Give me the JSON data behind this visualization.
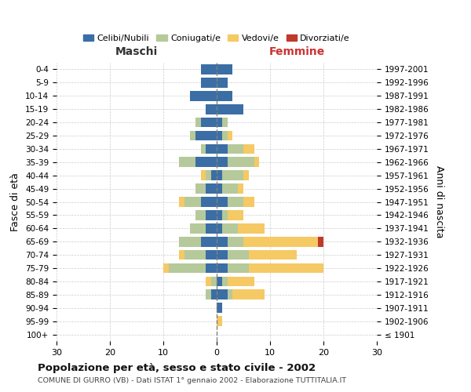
{
  "age_groups": [
    "100+",
    "95-99",
    "90-94",
    "85-89",
    "80-84",
    "75-79",
    "70-74",
    "65-69",
    "60-64",
    "55-59",
    "50-54",
    "45-49",
    "40-44",
    "35-39",
    "30-34",
    "25-29",
    "20-24",
    "15-19",
    "10-14",
    "5-9",
    "0-4"
  ],
  "birth_years": [
    "≤ 1901",
    "1902-1906",
    "1907-1911",
    "1912-1916",
    "1917-1921",
    "1922-1926",
    "1927-1931",
    "1932-1936",
    "1937-1941",
    "1942-1946",
    "1947-1951",
    "1952-1956",
    "1957-1961",
    "1962-1966",
    "1967-1971",
    "1972-1976",
    "1977-1981",
    "1982-1986",
    "1987-1991",
    "1992-1996",
    "1997-2001"
  ],
  "male_celibi": [
    0,
    0,
    0,
    1,
    0,
    2,
    2,
    3,
    2,
    2,
    3,
    2,
    1,
    4,
    2,
    4,
    3,
    2,
    5,
    3,
    3
  ],
  "male_coniugati": [
    0,
    0,
    0,
    1,
    1,
    7,
    4,
    4,
    3,
    2,
    3,
    2,
    1,
    3,
    1,
    1,
    1,
    0,
    0,
    0,
    0
  ],
  "male_vedovi": [
    0,
    0,
    0,
    0,
    1,
    1,
    1,
    0,
    0,
    0,
    1,
    0,
    1,
    0,
    0,
    0,
    0,
    0,
    0,
    0,
    0
  ],
  "male_divorziati": [
    0,
    0,
    0,
    0,
    0,
    0,
    0,
    0,
    0,
    0,
    0,
    0,
    0,
    0,
    0,
    0,
    0,
    0,
    0,
    0,
    0
  ],
  "female_celibi": [
    0,
    0,
    1,
    2,
    1,
    2,
    2,
    2,
    1,
    1,
    2,
    1,
    1,
    2,
    2,
    1,
    1,
    5,
    3,
    2,
    3
  ],
  "female_coniugati": [
    0,
    0,
    0,
    1,
    1,
    4,
    4,
    3,
    3,
    1,
    3,
    3,
    4,
    5,
    3,
    1,
    1,
    0,
    0,
    0,
    0
  ],
  "female_vedovi": [
    0,
    1,
    0,
    6,
    5,
    14,
    9,
    14,
    5,
    3,
    2,
    1,
    1,
    1,
    2,
    1,
    0,
    0,
    0,
    0,
    0
  ],
  "female_divorziati": [
    0,
    0,
    0,
    0,
    0,
    0,
    0,
    1,
    0,
    0,
    0,
    0,
    0,
    0,
    0,
    0,
    0,
    0,
    0,
    0,
    0
  ],
  "color_celibi": "#3b6ea5",
  "color_coniugati": "#b5c99a",
  "color_vedovi": "#f5c964",
  "color_divorziati": "#c0392b",
  "title": "Popolazione per età, sesso e stato civile - 2002",
  "subtitle": "COMUNE DI GURRO (VB) - Dati ISTAT 1° gennaio 2002 - Elaborazione TUTTITALIA.IT",
  "xlabel_left": "Maschi",
  "xlabel_right": "Femmine",
  "ylabel_left": "Fasce di età",
  "ylabel_right": "Anni di nascita",
  "xlim": 30,
  "bg_color": "#ffffff",
  "grid_color": "#cccccc",
  "maschi_color": "#333333",
  "femmine_color": "#cc3333"
}
